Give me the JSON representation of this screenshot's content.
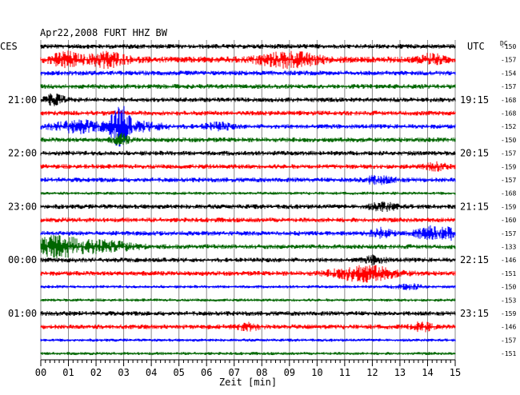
{
  "chart_data": {
    "type": "line",
    "title": "Apr22,2008   FURT HHZ BW",
    "left_label": "CES",
    "right_label": "UTC",
    "dc_label": "DC",
    "xlabel": "Zeit [min]",
    "xlim": [
      0,
      15
    ],
    "x_ticks": [
      "00",
      "01",
      "02",
      "03",
      "04",
      "05",
      "06",
      "07",
      "08",
      "09",
      "10",
      "11",
      "12",
      "13",
      "14",
      "15"
    ],
    "left_time_labels": [
      "21:00",
      "22:00",
      "23:00",
      "00:00",
      "01:00"
    ],
    "right_time_labels": [
      "19:15",
      "20:15",
      "21:15",
      "22:15",
      "23:15"
    ],
    "dc_values": [
      "-150",
      "-157",
      "-154",
      "-157",
      "-168",
      "-168",
      "-152",
      "-150",
      "-157",
      "-159",
      "-157",
      "-168",
      "-159",
      "-160",
      "-157",
      "-133",
      "-146",
      "-151",
      "-150",
      "-153",
      "-159",
      "-146",
      "-157",
      "-151"
    ],
    "trace_colors": [
      "#000000",
      "#ff0000",
      "#0000ff",
      "#006600"
    ],
    "series": [
      {
        "amp": 3,
        "bursts": []
      },
      {
        "amp": 4,
        "bursts": [
          [
            0.9,
            0.7,
            2
          ],
          [
            2.4,
            1.0,
            2
          ],
          [
            9.0,
            1.5,
            2
          ],
          [
            14.1,
            0.6,
            1.5
          ]
        ]
      },
      {
        "amp": 3,
        "bursts": []
      },
      {
        "amp": 3,
        "bursts": []
      },
      {
        "amp": 3,
        "bursts": [
          [
            0.5,
            0.5,
            2
          ]
        ]
      },
      {
        "amp": 3,
        "bursts": []
      },
      {
        "amp": 3,
        "bursts": [
          [
            1.3,
            1.2,
            2.2
          ],
          [
            2.85,
            0.45,
            8
          ],
          [
            3.4,
            1.6,
            1.6
          ],
          [
            6.4,
            0.7,
            1.3
          ]
        ]
      },
      {
        "amp": 3,
        "bursts": [
          [
            2.9,
            0.4,
            2
          ]
        ]
      },
      {
        "amp": 3,
        "bursts": []
      },
      {
        "amp": 3,
        "bursts": [
          [
            14.3,
            0.5,
            1.3
          ]
        ]
      },
      {
        "amp": 3,
        "bursts": [
          [
            12.2,
            0.8,
            1.3
          ]
        ]
      },
      {
        "amp": 2,
        "bursts": []
      },
      {
        "amp": 3,
        "bursts": [
          [
            12.4,
            0.7,
            1.3
          ]
        ]
      },
      {
        "amp": 3,
        "bursts": []
      },
      {
        "amp": 3,
        "bursts": [
          [
            12.3,
            0.5,
            2
          ],
          [
            14.1,
            0.7,
            2.5
          ],
          [
            14.9,
            0.5,
            2
          ]
        ]
      },
      {
        "amp": 3,
        "bursts": [
          [
            0.6,
            1.2,
            4
          ],
          [
            2.3,
            1.5,
            2
          ]
        ]
      },
      {
        "amp": 3,
        "bursts": [
          [
            12.1,
            0.5,
            1.5
          ]
        ]
      },
      {
        "amp": 3,
        "bursts": [
          [
            11.7,
            1.5,
            3
          ]
        ]
      },
      {
        "amp": 2,
        "bursts": [
          [
            13.3,
            0.7,
            1.5
          ]
        ]
      },
      {
        "amp": 2,
        "bursts": []
      },
      {
        "amp": 3,
        "bursts": []
      },
      {
        "amp": 3,
        "bursts": [
          [
            7.5,
            0.5,
            1.3
          ],
          [
            13.8,
            0.5,
            1.5
          ]
        ]
      },
      {
        "amp": 2,
        "bursts": []
      },
      {
        "amp": 2,
        "bursts": []
      }
    ]
  }
}
